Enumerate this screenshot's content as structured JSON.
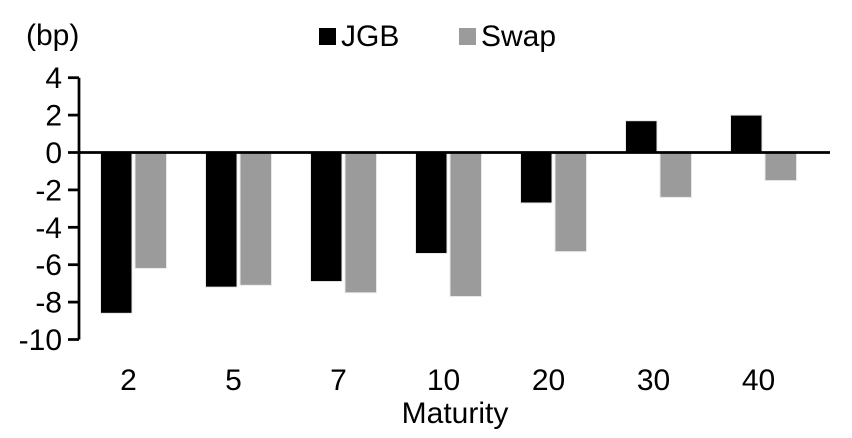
{
  "chart_data": {
    "type": "bar",
    "title": "",
    "unit_label": "(bp)",
    "xlabel": "Maturity",
    "ylabel": "",
    "categories": [
      "2",
      "5",
      "7",
      "10",
      "20",
      "30",
      "40"
    ],
    "series": [
      {
        "name": "JGB",
        "color": "#000000",
        "values": [
          -8.6,
          -7.2,
          -6.9,
          -5.4,
          -2.7,
          1.7,
          2.0
        ]
      },
      {
        "name": "Swap",
        "color": "#9b9b9b",
        "values": [
          -6.2,
          -7.1,
          -7.5,
          -7.7,
          -5.3,
          -2.4,
          -1.5
        ]
      }
    ],
    "ylim": [
      -10,
      4
    ],
    "yticks": [
      4,
      2,
      0,
      -2,
      -4,
      -6,
      -8,
      -10
    ],
    "grid": false,
    "legend_position": "top-center",
    "background_color": "#ffffff",
    "text_color": "#000000"
  }
}
